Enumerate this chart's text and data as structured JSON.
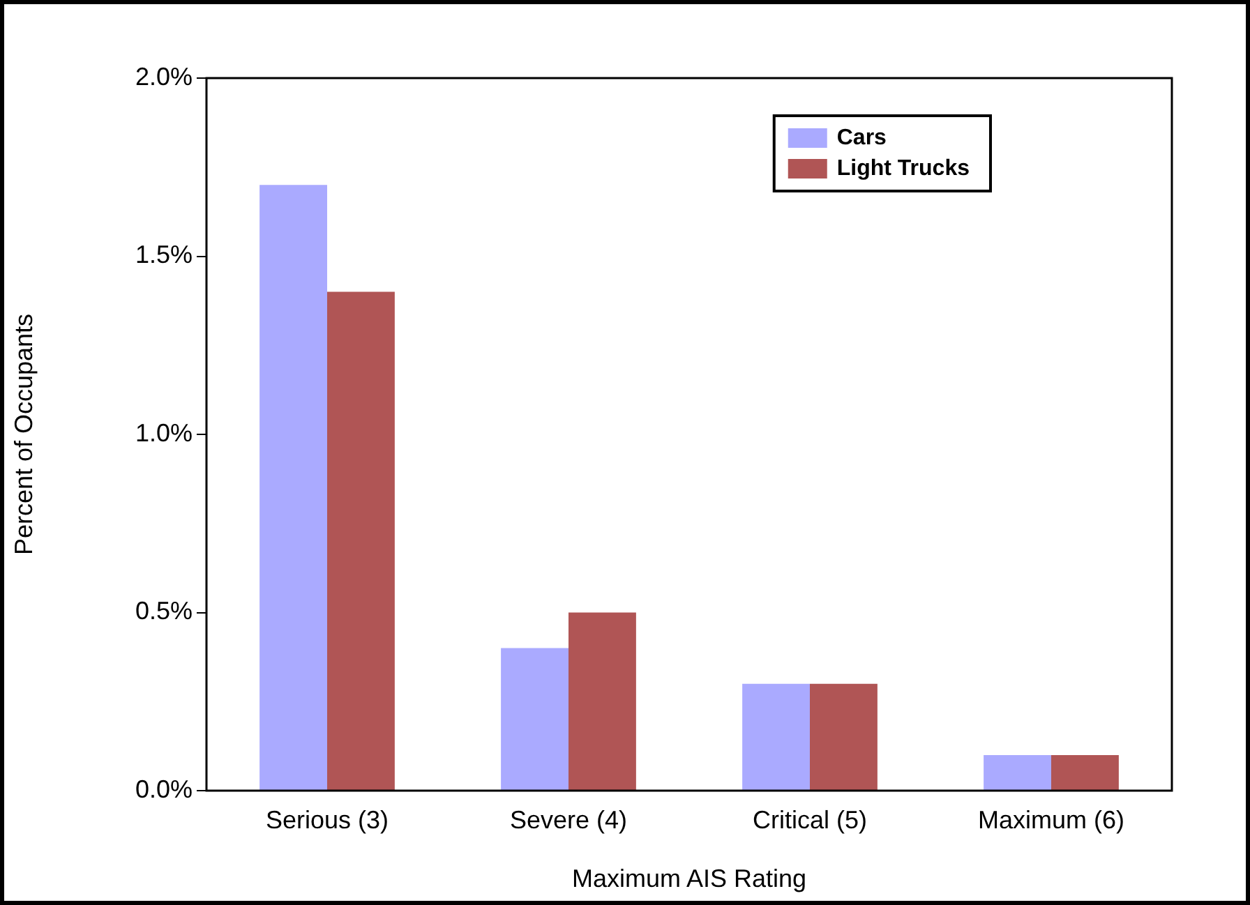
{
  "chart_data": {
    "type": "bar",
    "xlabel": "Maximum AIS Rating",
    "ylabel": "Percent of Occupants",
    "categories": [
      "Serious (3)",
      "Severe (4)",
      "Critical (5)",
      "Maximum (6)"
    ],
    "series": [
      {
        "name": "Cars",
        "color": "#aaaaff",
        "values": [
          1.7,
          0.4,
          0.3,
          0.1
        ]
      },
      {
        "name": "Light Trucks",
        "color": "#b05555",
        "values": [
          1.4,
          0.5,
          0.3,
          0.1
        ]
      }
    ],
    "ylim": [
      0,
      2
    ],
    "yticks": [
      {
        "value": 0,
        "label": "0.0%"
      },
      {
        "value": 0.5,
        "label": "0.5%"
      },
      {
        "value": 1,
        "label": "1.0%"
      },
      {
        "value": 1.5,
        "label": "1.5%"
      },
      {
        "value": 2,
        "label": "2.0%"
      }
    ],
    "grid": false,
    "legend": "top right"
  }
}
